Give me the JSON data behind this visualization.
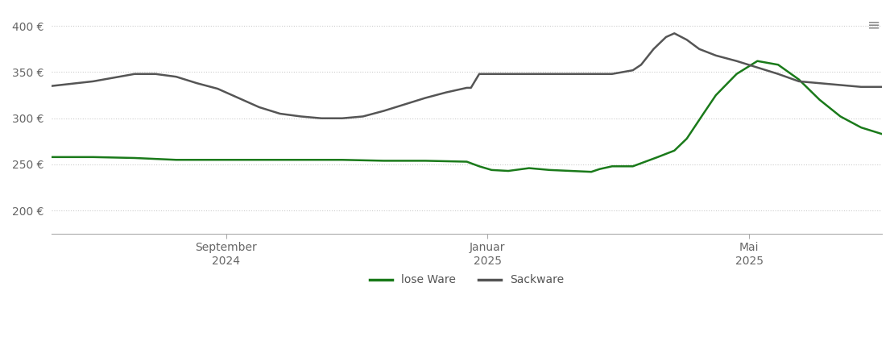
{
  "title": "",
  "ylim": [
    175,
    415
  ],
  "yticks": [
    200,
    250,
    300,
    350,
    400
  ],
  "ytick_labels": [
    "200 €",
    "250 €",
    "300 €",
    "350 €",
    "400 €"
  ],
  "lose_ware_color": "#1a7a1a",
  "sackware_color": "#555555",
  "background_color": "#ffffff",
  "grid_color": "#cccccc",
  "legend_items": [
    "lose Ware",
    "Sackware"
  ],
  "xtick_labels": [
    "September\n2024",
    "Januar\n2025",
    "Mai\n2025"
  ],
  "lose_ware_x": [
    0,
    1,
    2,
    3,
    4,
    5,
    6,
    7,
    8,
    9,
    10,
    10.3,
    10.6,
    11,
    11.5,
    12,
    12.5,
    13,
    13.2,
    13.5,
    14,
    14.3,
    14.6,
    15,
    15.3,
    15.7,
    16,
    16.5,
    17,
    17.5,
    18,
    18.5,
    19,
    19.5,
    20
  ],
  "lose_ware_y": [
    258,
    258,
    257,
    255,
    255,
    255,
    255,
    255,
    254,
    254,
    253,
    248,
    244,
    243,
    246,
    244,
    243,
    242,
    245,
    248,
    248,
    253,
    258,
    265,
    278,
    305,
    325,
    348,
    362,
    358,
    342,
    320,
    302,
    290,
    283
  ],
  "sackware_x": [
    0,
    1,
    2,
    2.5,
    3,
    3.5,
    4,
    4.5,
    5,
    5.5,
    6,
    6.5,
    7,
    7.5,
    8,
    8.5,
    9,
    9.5,
    10,
    10.1,
    10.3,
    10.5,
    11,
    11.5,
    12,
    12.5,
    13,
    13.5,
    14,
    14.2,
    14.5,
    14.8,
    15,
    15.3,
    15.6,
    16,
    16.5,
    17,
    17.5,
    18,
    18.5,
    19,
    19.5,
    20
  ],
  "sackware_y": [
    335,
    340,
    348,
    348,
    345,
    338,
    332,
    322,
    312,
    305,
    302,
    300,
    300,
    302,
    308,
    315,
    322,
    328,
    333,
    333,
    348,
    348,
    348,
    348,
    348,
    348,
    348,
    348,
    352,
    358,
    375,
    388,
    392,
    385,
    375,
    368,
    362,
    355,
    348,
    340,
    338,
    336,
    334,
    334
  ]
}
